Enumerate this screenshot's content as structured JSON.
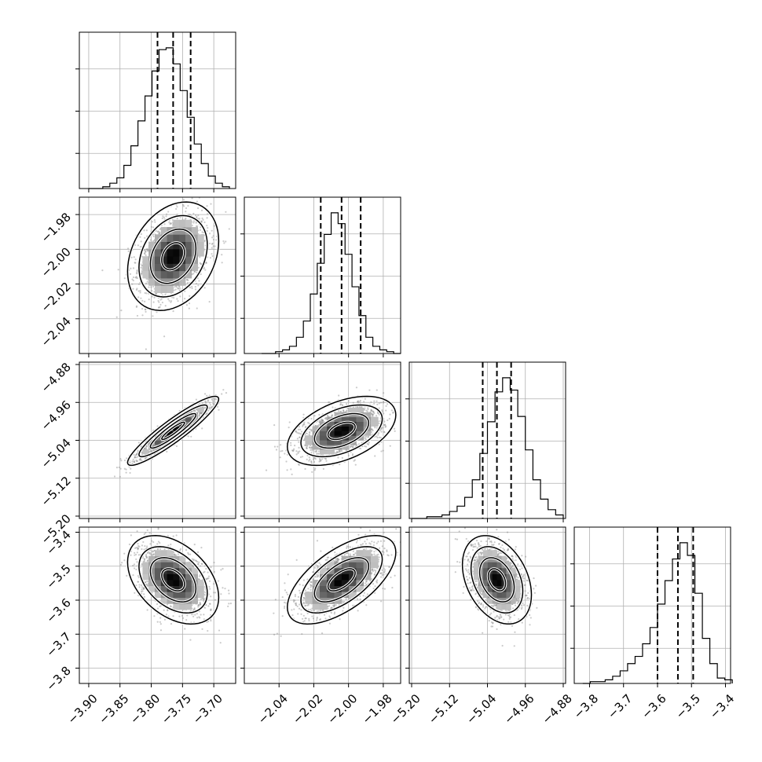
{
  "chart_data": {
    "type": "corner",
    "parameters": [
      {
        "median": -3.765,
        "q16": -3.79,
        "q84": -3.737,
        "sigma": 0.028,
        "range": [
          -3.915,
          -3.665
        ],
        "ticks": [
          -3.9,
          -3.85,
          -3.8,
          -3.75,
          -3.7
        ],
        "tick_labels": [
          "−3.90",
          "−3.85",
          "−3.80",
          "−3.75",
          "−3.70"
        ]
      },
      {
        "median": -2.004,
        "q16": -2.016,
        "q84": -1.993,
        "sigma": 0.012,
        "range": [
          -2.06,
          -1.97
        ],
        "ticks": [
          -2.04,
          -2.02,
          -2.0,
          -1.98
        ],
        "tick_labels": [
          "−2.04",
          "−2.02",
          "−2.00",
          "−1.98"
        ]
      },
      {
        "median": -5.02,
        "q16": -5.05,
        "q84": -4.99,
        "sigma": 0.028,
        "range": [
          -5.205,
          -4.875
        ],
        "ticks": [
          -5.2,
          -5.12,
          -5.04,
          -4.96,
          -4.88
        ],
        "tick_labels": [
          "−5.20",
          "−5.12",
          "−5.04",
          "−4.96",
          "−4.88"
        ]
      },
      {
        "median": -3.54,
        "q16": -3.6,
        "q84": -3.495,
        "sigma": 0.05,
        "range": [
          -3.845,
          -3.385
        ],
        "ticks": [
          -3.8,
          -3.7,
          -3.6,
          -3.5,
          -3.4
        ],
        "tick_labels": [
          "−3.8",
          "−3.7",
          "−3.6",
          "−3.5",
          "−3.4"
        ]
      }
    ],
    "histograms": [
      {
        "param": 0,
        "bin_range": [
          -3.9,
          -3.675
        ],
        "counts": [
          0,
          0,
          1,
          3,
          6,
          13,
          24,
          38,
          52,
          66,
          78,
          79,
          70,
          55,
          40,
          25,
          14,
          7,
          3,
          1
        ]
      },
      {
        "param": 1,
        "bin_range": [
          -2.05,
          -1.97
        ],
        "counts": [
          0,
          0,
          1,
          2,
          4,
          9,
          18,
          33,
          50,
          66,
          78,
          72,
          55,
          37,
          21,
          9,
          4,
          2,
          1,
          0
        ]
      },
      {
        "param": 2,
        "bin_range": [
          -5.2,
          -4.88
        ],
        "counts": [
          0,
          0,
          1,
          1,
          2,
          4,
          7,
          12,
          22,
          37,
          55,
          72,
          80,
          73,
          58,
          39,
          22,
          11,
          5,
          2
        ]
      },
      {
        "param": 3,
        "bin_range": [
          -3.82,
          -3.38
        ],
        "counts": [
          0,
          1,
          1,
          2,
          4,
          7,
          11,
          15,
          22,
          31,
          44,
          57,
          69,
          78,
          71,
          50,
          25,
          11,
          3,
          2
        ]
      }
    ],
    "correlations": [
      {
        "row": 1,
        "col": 0,
        "rho": 0.28
      },
      {
        "row": 2,
        "col": 0,
        "rho": 0.92
      },
      {
        "row": 2,
        "col": 1,
        "rho": 0.46
      },
      {
        "row": 3,
        "col": 0,
        "rho": -0.4
      },
      {
        "row": 3,
        "col": 1,
        "rho": 0.62
      },
      {
        "row": 3,
        "col": 2,
        "rho": -0.34
      }
    ],
    "contour_levels_sigma": [
      0.5,
      1.0,
      1.5,
      2.0
    ],
    "grid": true
  }
}
